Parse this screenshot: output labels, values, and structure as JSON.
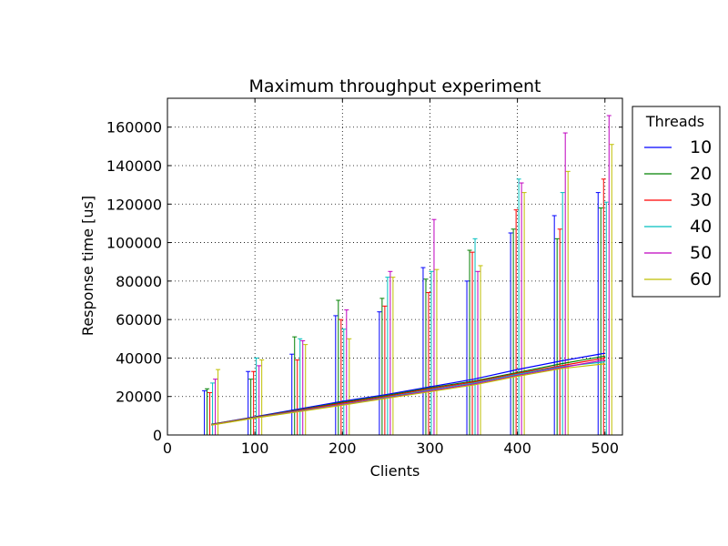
{
  "chart_data": {
    "type": "line",
    "title": "Maximum throughput experiment",
    "xlabel": "Clients",
    "ylabel": "Response time [us]",
    "xlim": [
      0,
      520
    ],
    "ylim": [
      0,
      175000
    ],
    "xticks": [
      0,
      100,
      200,
      300,
      400,
      500
    ],
    "yticks": [
      0,
      20000,
      40000,
      60000,
      80000,
      100000,
      120000,
      140000,
      160000
    ],
    "grid": true,
    "legend": {
      "title": "Threads",
      "placement": "outside-right"
    },
    "x": [
      50,
      100,
      150,
      200,
      250,
      300,
      350,
      400,
      450,
      500
    ],
    "series": [
      {
        "name": "10",
        "color": "#0000ff",
        "values": [
          5500,
          9500,
          13500,
          17500,
          21000,
          25000,
          29000,
          34000,
          38500,
          42500
        ],
        "errors": [
          23000,
          33000,
          42000,
          62000,
          64000,
          87000,
          80000,
          105000,
          114000,
          126000
        ]
      },
      {
        "name": "20",
        "color": "#008000",
        "values": [
          5500,
          9300,
          13000,
          17000,
          20500,
          24500,
          28000,
          32500,
          37000,
          41000
        ],
        "errors": [
          24000,
          29000,
          51000,
          70000,
          71000,
          81000,
          96000,
          107000,
          102000,
          118000
        ]
      },
      {
        "name": "30",
        "color": "#ff0000",
        "values": [
          5400,
          9200,
          12800,
          16500,
          20000,
          24000,
          27500,
          32000,
          36000,
          40000
        ],
        "errors": [
          22000,
          33000,
          39000,
          60000,
          67000,
          74000,
          95000,
          117000,
          107000,
          133000
        ]
      },
      {
        "name": "40",
        "color": "#00bfbf",
        "values": [
          5300,
          9000,
          12500,
          16000,
          19500,
          23500,
          27000,
          31500,
          35500,
          38000
        ],
        "errors": [
          27000,
          40000,
          50000,
          55000,
          82000,
          85000,
          102000,
          133000,
          126000,
          121000
        ]
      },
      {
        "name": "50",
        "color": "#bf00bf",
        "values": [
          5200,
          8900,
          12300,
          15800,
          19200,
          23000,
          26500,
          31000,
          35000,
          39000
        ],
        "errors": [
          29000,
          36000,
          49000,
          65000,
          85000,
          112000,
          85000,
          131000,
          157000,
          166000
        ]
      },
      {
        "name": "60",
        "color": "#bfbf00",
        "values": [
          5100,
          8800,
          12100,
          15500,
          19000,
          22500,
          26000,
          30500,
          34500,
          37000
        ],
        "errors": [
          34000,
          39000,
          47000,
          50000,
          82000,
          86000,
          88000,
          126000,
          137000,
          151000
        ]
      }
    ]
  }
}
